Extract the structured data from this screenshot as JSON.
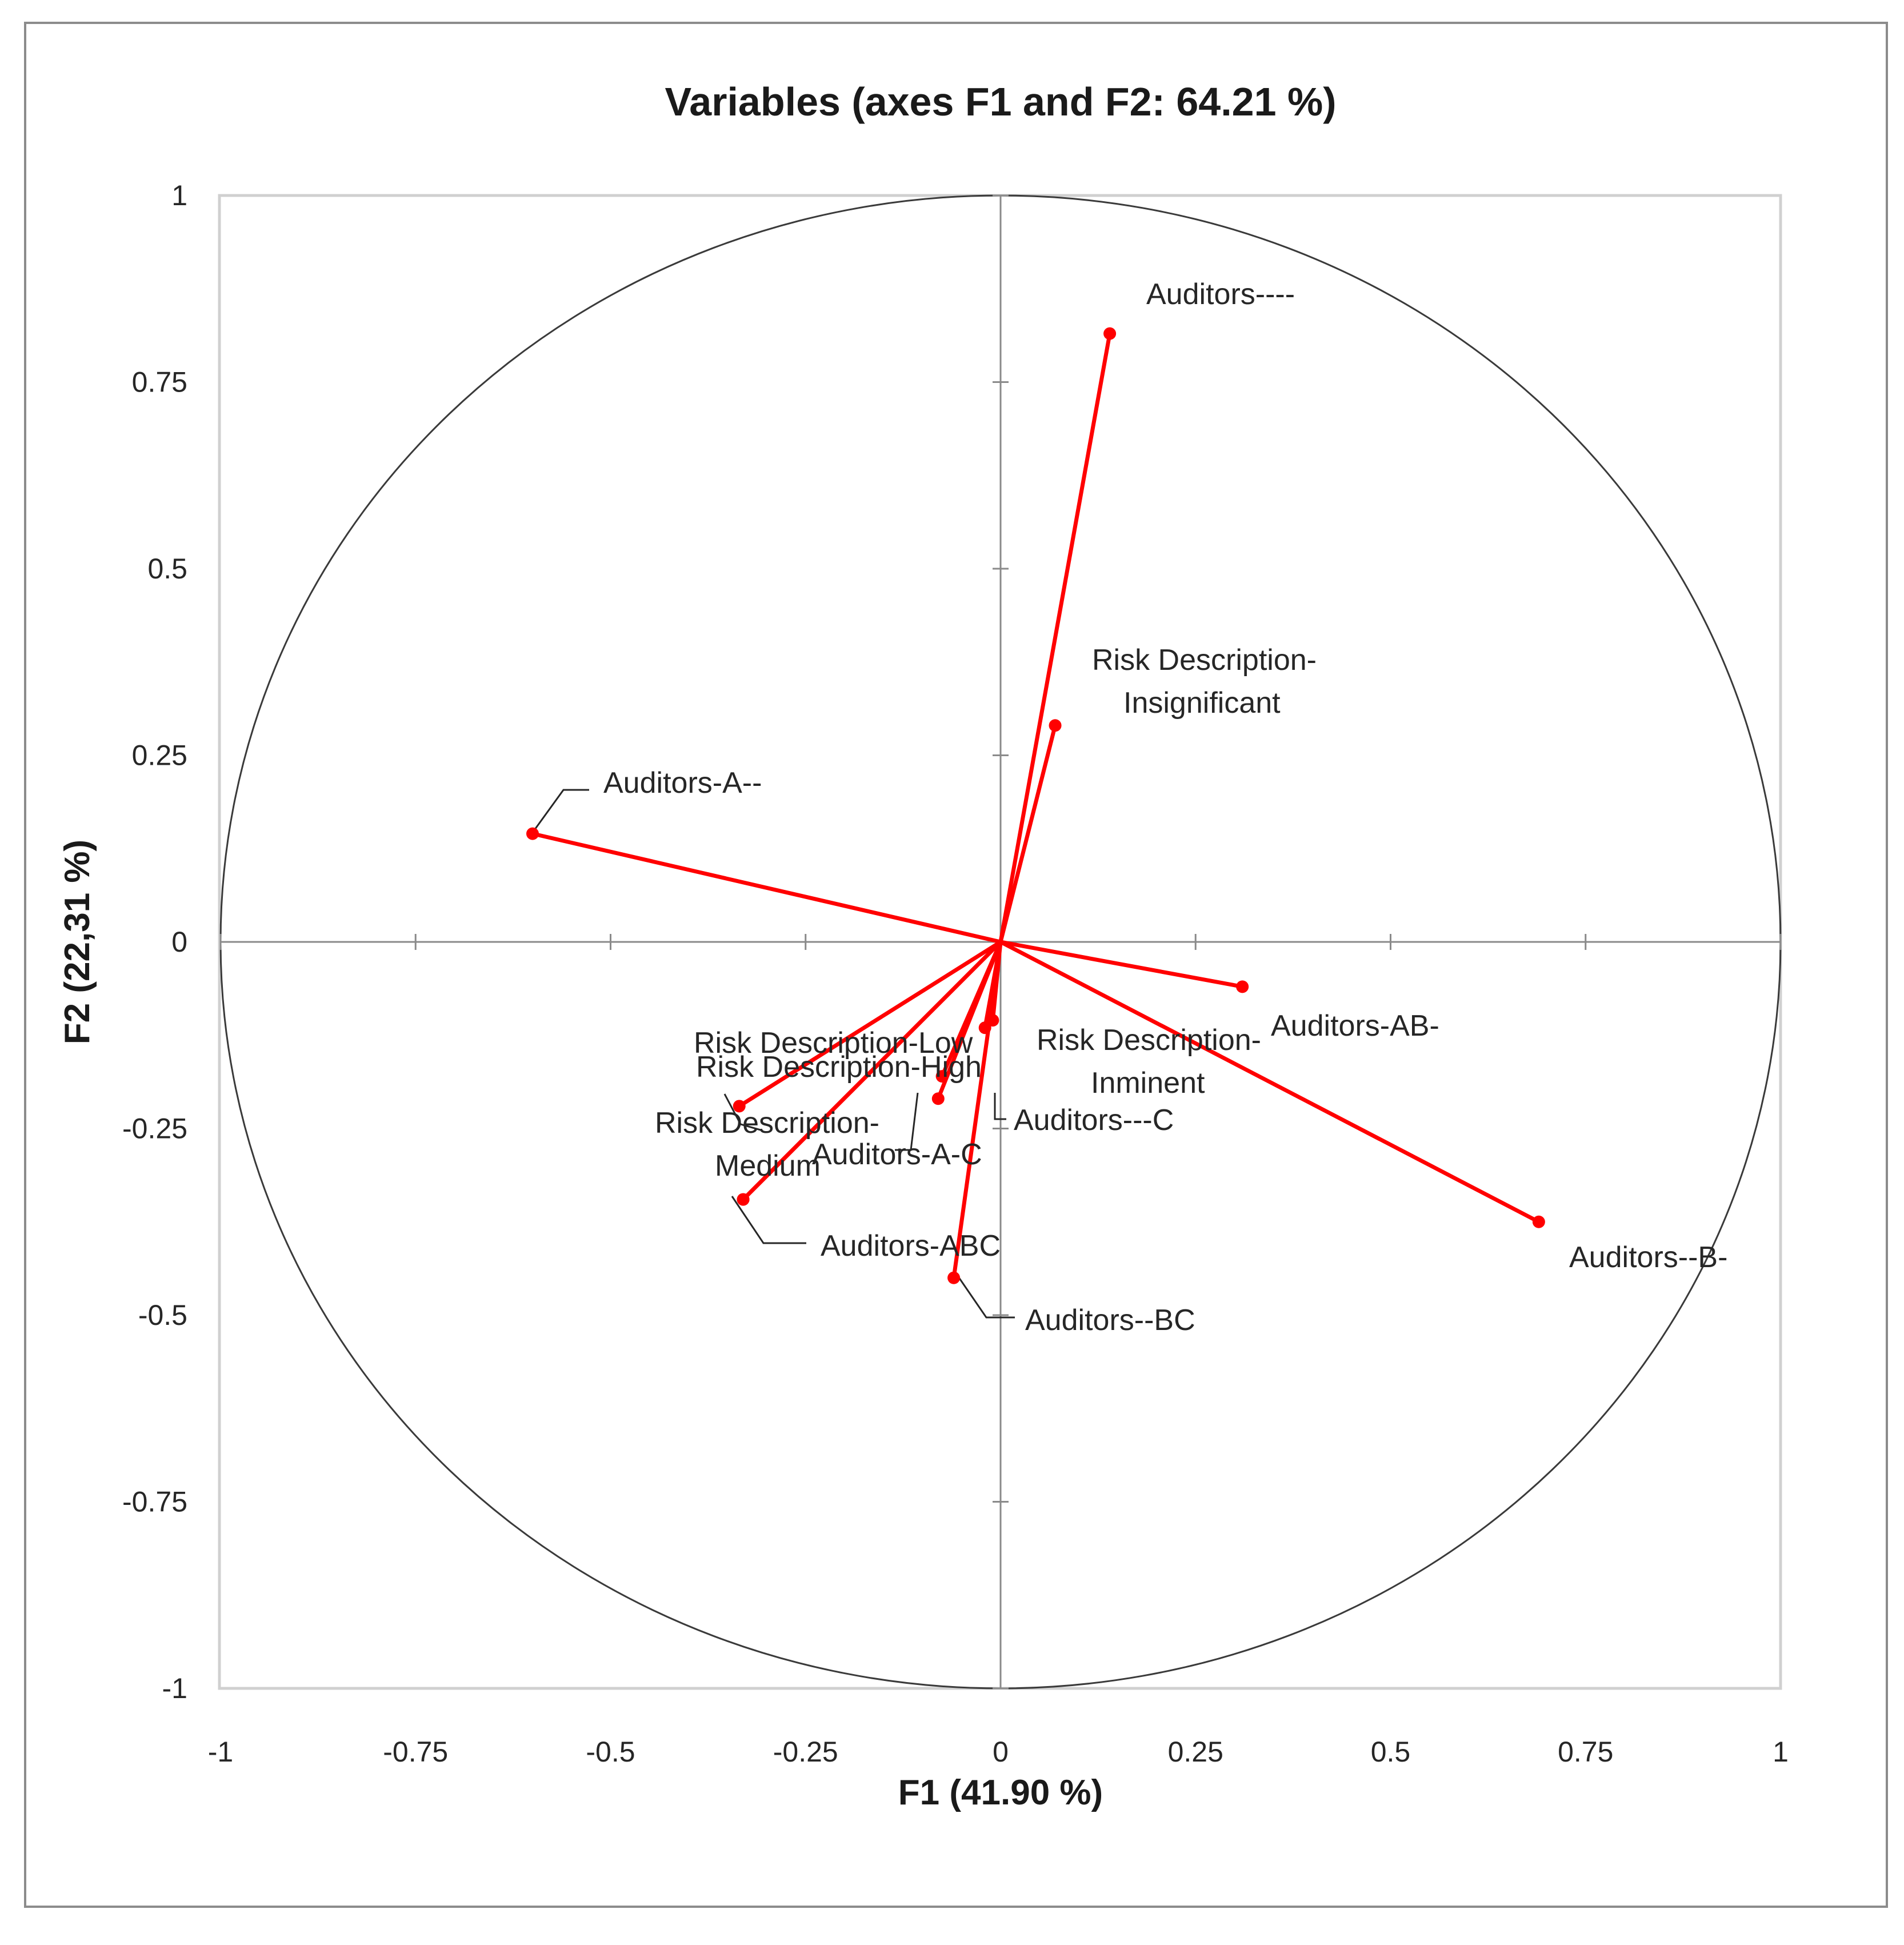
{
  "chart_data": {
    "type": "scatter",
    "subtype": "correlation-circle",
    "title": "Variables (axes F1 and F2: 64.21 %)",
    "xlabel": "F1 (41.90 %)",
    "ylabel": "F2 (22,31 %)",
    "xlim": [
      -1,
      1
    ],
    "ylim": [
      -1,
      1
    ],
    "xticks": [
      "-1",
      "-0.75",
      "-0.5",
      "-0.25",
      "0",
      "0.25",
      "0.5",
      "0.75",
      "1"
    ],
    "yticks": [
      "1",
      "0.75",
      "0.5",
      "0.25",
      "0",
      "-0.25",
      "-0.5",
      "-0.75",
      "-1"
    ],
    "grid": false,
    "unit_circle": true,
    "series": [
      {
        "color": "#ff0000",
        "points": [
          {
            "label": [
              "Auditors----"
            ],
            "x": 0.14,
            "y": 0.815
          },
          {
            "label": [
              "Risk Description-",
              "Insignificant"
            ],
            "x": 0.07,
            "y": 0.29
          },
          {
            "label": [
              "Auditors-A--"
            ],
            "x": -0.6,
            "y": 0.145
          },
          {
            "label": [
              "Auditors-AB-"
            ],
            "x": 0.31,
            "y": -0.06
          },
          {
            "label": [
              "Auditors--B-"
            ],
            "x": 0.69,
            "y": -0.375
          },
          {
            "label": [
              "Risk Description-",
              "Inminent"
            ],
            "x": -0.01,
            "y": -0.105
          },
          {
            "label": [
              "Auditors---C"
            ],
            "x": -0.02,
            "y": -0.115
          },
          {
            "label": [
              "Risk Description-Low"
            ],
            "x": -0.075,
            "y": -0.18
          },
          {
            "label": [
              "Risk Description-High"
            ],
            "x": -0.08,
            "y": -0.21
          },
          {
            "label": [
              "Risk Description-",
              "Medium"
            ],
            "x": -0.335,
            "y": -0.22
          },
          {
            "label": [
              "Auditors-A-C"
            ],
            "x": -0.33,
            "y": -0.345
          },
          {
            "label": [
              "Auditors-ABC"
            ],
            "x": -0.33,
            "y": -0.345
          },
          {
            "label": [
              "Auditors--BC"
            ],
            "x": -0.06,
            "y": -0.45
          }
        ]
      }
    ]
  }
}
